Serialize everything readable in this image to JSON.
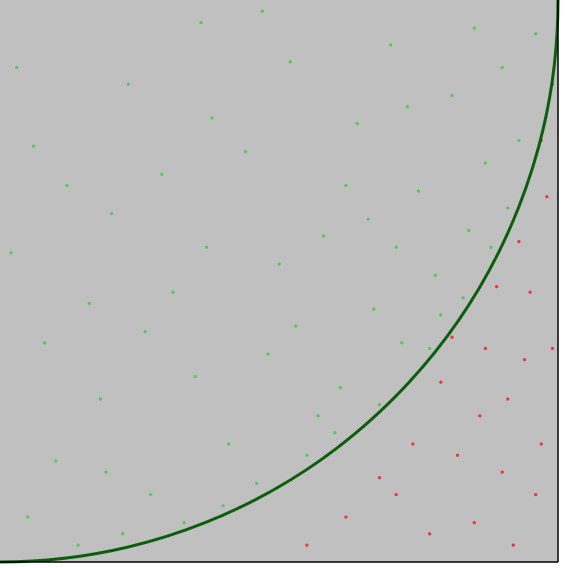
{
  "chart_data": {
    "type": "scatter",
    "xlim": [
      0,
      1
    ],
    "ylim": [
      1,
      0
    ],
    "series": [
      {
        "color": "#55c855",
        "x": [
          0.05,
          0.12,
          0.18,
          0.23,
          0.27,
          0.31,
          0.36,
          0.41,
          0.44,
          0.48,
          0.52,
          0.55,
          0.58,
          0.61,
          0.64,
          0.67,
          0.7,
          0.72,
          0.75,
          0.78,
          0.81,
          0.84,
          0.87,
          0.9,
          0.93,
          0.96,
          0.02,
          0.08,
          0.14,
          0.2,
          0.26,
          0.33,
          0.38,
          0.46,
          0.5,
          0.57,
          0.62,
          0.68,
          0.73,
          0.79,
          0.85,
          0.88,
          0.03,
          0.1,
          0.16,
          0.22,
          0.29,
          0.35,
          0.4,
          0.47,
          0.53,
          0.6,
          0.66,
          0.71,
          0.77,
          0.83,
          0.91,
          0.06,
          0.19,
          0.37
        ],
        "values": [
          0.92,
          0.33,
          0.71,
          0.15,
          0.88,
          0.52,
          0.04,
          0.79,
          0.27,
          0.63,
          0.11,
          0.81,
          0.42,
          0.69,
          0.22,
          0.55,
          0.08,
          0.61,
          0.34,
          0.49,
          0.17,
          0.41,
          0.29,
          0.12,
          0.25,
          0.06,
          0.45,
          0.61,
          0.97,
          0.38,
          0.59,
          0.93,
          0.21,
          0.86,
          0.47,
          0.74,
          0.33,
          0.72,
          0.19,
          0.56,
          0.05,
          0.44,
          0.12,
          0.82,
          0.54,
          0.95,
          0.31,
          0.67,
          0.9,
          0.02,
          0.58,
          0.77,
          0.39,
          0.44,
          0.62,
          0.53,
          0.37,
          0.26,
          0.84,
          0.44
        ]
      },
      {
        "color": "#ee3535",
        "x": [
          0.98,
          0.95,
          0.91,
          0.87,
          0.82,
          0.96,
          0.99,
          0.74,
          0.68,
          0.79,
          0.93,
          0.97,
          0.85,
          0.89,
          0.62,
          0.77,
          0.94,
          0.86,
          0.99,
          0.92,
          0.71,
          0.81,
          0.97,
          0.9,
          0.55
        ],
        "values": [
          0.35,
          0.52,
          0.71,
          0.62,
          0.81,
          0.88,
          0.62,
          0.79,
          0.85,
          0.68,
          0.43,
          0.25,
          0.93,
          0.51,
          0.92,
          0.95,
          0.64,
          0.74,
          0.15,
          0.97,
          0.88,
          0.6,
          0.79,
          0.84,
          0.97
        ]
      }
    ]
  }
}
